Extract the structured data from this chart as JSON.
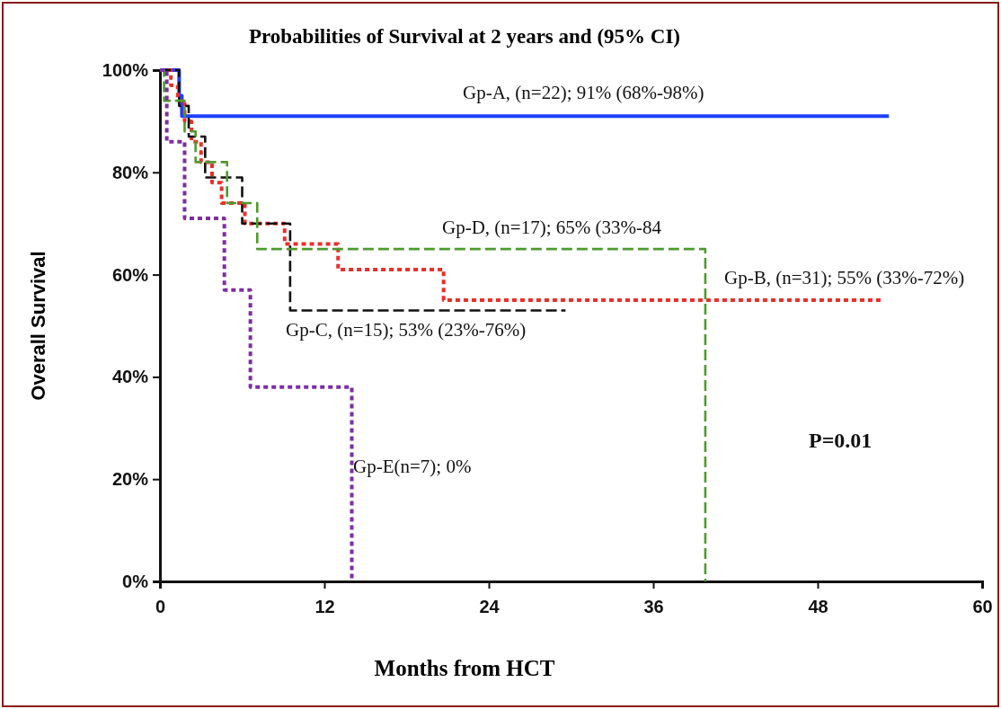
{
  "chart_data": {
    "type": "step",
    "title": "Probabilities of Survival at 2 years and (95% CI)",
    "xlabel": "Months from HCT",
    "ylabel": "Overall Survival",
    "xlim": [
      0,
      60
    ],
    "xticks": [
      0,
      12,
      24,
      36,
      48,
      60
    ],
    "ylim": [
      0,
      100
    ],
    "yticks": [
      {
        "value": 0,
        "label": "0%"
      },
      {
        "value": 20,
        "label": "20%"
      },
      {
        "value": 40,
        "label": "40%"
      },
      {
        "value": 60,
        "label": "60%"
      },
      {
        "value": 80,
        "label": "80%"
      },
      {
        "value": 100,
        "label": "100%"
      }
    ],
    "marker": "none",
    "series": [
      {
        "name": "Gp-A, (n=22); 91% (68%-98%)",
        "color": "#1f3fff",
        "line_style": "solid",
        "x": [
          0,
          1.4,
          1.6,
          53.2
        ],
        "values": [
          100,
          95,
          91,
          91
        ]
      },
      {
        "name": "Gp-B, (n=31); 55% (33%-72%)",
        "color": "#e8302a",
        "line_style": "dotted",
        "x": [
          0,
          0.8,
          1.3,
          1.8,
          2.3,
          3.0,
          3.8,
          4.5,
          6.2,
          9.1,
          13.0,
          20.7,
          52.6
        ],
        "values": [
          100,
          97,
          94,
          90,
          86,
          82,
          78,
          74,
          70,
          66,
          61,
          55,
          55
        ]
      },
      {
        "name": "Gp-C, (n=15); 53% (23%-76%)",
        "color": "#111111",
        "line_style": "dashed",
        "x": [
          0,
          1.4,
          2.1,
          3.3,
          6.0,
          9.5,
          29.6
        ],
        "values": [
          100,
          93,
          87,
          79,
          70,
          53,
          53
        ]
      },
      {
        "name": "Gp-D, (n=17); 65% (33%-84",
        "color": "#4e9a2e",
        "line_style": "dashed",
        "x": [
          0,
          0.3,
          1.8,
          2.6,
          4.9,
          7.1,
          39.8
        ],
        "values": [
          100,
          94,
          88,
          82,
          74,
          65,
          0
        ]
      },
      {
        "name": "Gp-E(n=7); 0%",
        "color": "#7b2fa0",
        "line_style": "dotted",
        "x": [
          0,
          0.5,
          1.8,
          4.7,
          6.6,
          14.0
        ],
        "values": [
          100,
          86,
          71,
          57,
          38,
          0
        ]
      }
    ],
    "annotations": [
      "P=0.01"
    ]
  }
}
